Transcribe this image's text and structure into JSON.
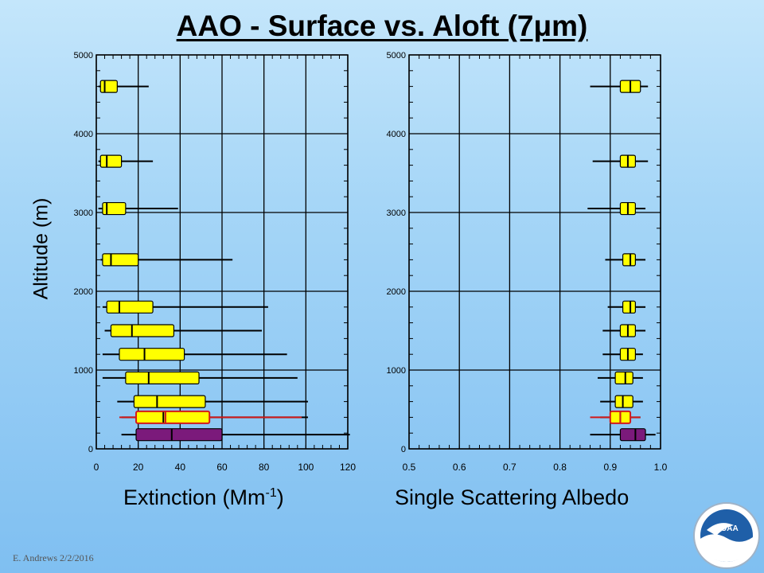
{
  "title": "AAO - Surface vs. Aloft (7μm)",
  "ylabel": "Altitude (m)",
  "credit": "E. Andrews   2/2/2016",
  "logo_text": "NOAA",
  "colors": {
    "yellow": "#ffff00",
    "purple": "#7b1a7b",
    "red": "#d21a1a",
    "grid": "#000000"
  },
  "chart_data": [
    {
      "type": "box",
      "xlabel": "Extinction (Mm-1)",
      "xlabel_main": "Extinction (Mm",
      "xlabel_sup": "-1",
      "xlabel_end": ")",
      "ylabel": "Altitude (m)",
      "xlim": [
        0,
        120
      ],
      "ylim": [
        0,
        5000
      ],
      "xticks": [
        0,
        20,
        40,
        60,
        80,
        100,
        120
      ],
      "yticks": [
        0,
        1000,
        2000,
        3000,
        4000,
        5000
      ],
      "grid": true,
      "boxes": [
        {
          "y": 4600,
          "whislo": 1,
          "q1": 2,
          "median": 4,
          "q3": 10,
          "whishi": 25,
          "color": "yellow"
        },
        {
          "y": 3650,
          "whislo": 1,
          "q1": 2,
          "median": 5,
          "q3": 12,
          "whishi": 27,
          "color": "yellow"
        },
        {
          "y": 3050,
          "whislo": 1,
          "q1": 3,
          "median": 5,
          "q3": 14,
          "whishi": 39,
          "color": "yellow"
        },
        {
          "y": 2400,
          "whislo": 2,
          "q1": 3,
          "median": 7,
          "q3": 20,
          "whishi": 65,
          "color": "yellow"
        },
        {
          "y": 1800,
          "whislo": 3,
          "q1": 5,
          "median": 11,
          "q3": 27,
          "whishi": 82,
          "color": "yellow"
        },
        {
          "y": 1500,
          "whislo": 4,
          "q1": 7,
          "median": 17,
          "q3": 37,
          "whishi": 79,
          "color": "yellow"
        },
        {
          "y": 1200,
          "whislo": 3,
          "q1": 11,
          "median": 23,
          "q3": 42,
          "whishi": 91,
          "color": "yellow"
        },
        {
          "y": 900,
          "whislo": 3,
          "q1": 14,
          "median": 25,
          "q3": 49,
          "whishi": 96,
          "color": "yellow"
        },
        {
          "y": 600,
          "whislo": 10,
          "q1": 18,
          "median": 29,
          "q3": 52,
          "whishi": 101,
          "color": "yellow"
        },
        {
          "y": 400,
          "whislo": 12,
          "q1": 19,
          "median": 32,
          "q3": 54,
          "whishi": 101,
          "color": "yellow"
        },
        {
          "y": 400,
          "whislo": 11,
          "q1": 19,
          "median": 33,
          "q3": 54,
          "whishi": 98,
          "color": "red",
          "outline_only": true
        },
        {
          "y": 180,
          "whislo": 12,
          "q1": 19,
          "median": 36,
          "q3": 60,
          "whishi": 121,
          "color": "purple"
        }
      ]
    },
    {
      "type": "box",
      "xlabel": "Single Scattering Albedo",
      "xlim": [
        0.5,
        1.0
      ],
      "ylim": [
        0,
        5000
      ],
      "xticks": [
        0.5,
        0.6,
        0.7,
        0.8,
        0.9,
        1.0
      ],
      "xtick_labels": [
        "0.5",
        "0.6",
        "0.7",
        "0.8",
        "0.9",
        "1.0"
      ],
      "yticks": [
        0,
        1000,
        2000,
        3000,
        4000,
        5000
      ],
      "grid": true,
      "boxes": [
        {
          "y": 4600,
          "whislo": 0.86,
          "q1": 0.92,
          "median": 0.94,
          "q3": 0.96,
          "whishi": 0.975,
          "color": "yellow"
        },
        {
          "y": 3650,
          "whislo": 0.865,
          "q1": 0.92,
          "median": 0.935,
          "q3": 0.95,
          "whishi": 0.975,
          "color": "yellow"
        },
        {
          "y": 3050,
          "whislo": 0.855,
          "q1": 0.92,
          "median": 0.935,
          "q3": 0.95,
          "whishi": 0.97,
          "color": "yellow"
        },
        {
          "y": 2400,
          "whislo": 0.89,
          "q1": 0.925,
          "median": 0.94,
          "q3": 0.95,
          "whishi": 0.97,
          "color": "yellow"
        },
        {
          "y": 1800,
          "whislo": 0.895,
          "q1": 0.925,
          "median": 0.94,
          "q3": 0.95,
          "whishi": 0.97,
          "color": "yellow"
        },
        {
          "y": 1500,
          "whislo": 0.885,
          "q1": 0.92,
          "median": 0.935,
          "q3": 0.95,
          "whishi": 0.97,
          "color": "yellow"
        },
        {
          "y": 1200,
          "whislo": 0.885,
          "q1": 0.92,
          "median": 0.935,
          "q3": 0.95,
          "whishi": 0.965,
          "color": "yellow"
        },
        {
          "y": 900,
          "whislo": 0.875,
          "q1": 0.91,
          "median": 0.93,
          "q3": 0.945,
          "whishi": 0.965,
          "color": "yellow"
        },
        {
          "y": 600,
          "whislo": 0.88,
          "q1": 0.91,
          "median": 0.925,
          "q3": 0.945,
          "whishi": 0.965,
          "color": "yellow"
        },
        {
          "y": 400,
          "whislo": 0.88,
          "q1": 0.9,
          "median": 0.92,
          "q3": 0.94,
          "whishi": 0.96,
          "color": "yellow"
        },
        {
          "y": 400,
          "whislo": 0.86,
          "q1": 0.9,
          "median": 0.92,
          "q3": 0.94,
          "whishi": 0.96,
          "color": "red",
          "outline_only": true
        },
        {
          "y": 180,
          "whislo": 0.86,
          "q1": 0.92,
          "median": 0.95,
          "q3": 0.97,
          "whishi": 0.99,
          "color": "purple"
        }
      ]
    }
  ]
}
